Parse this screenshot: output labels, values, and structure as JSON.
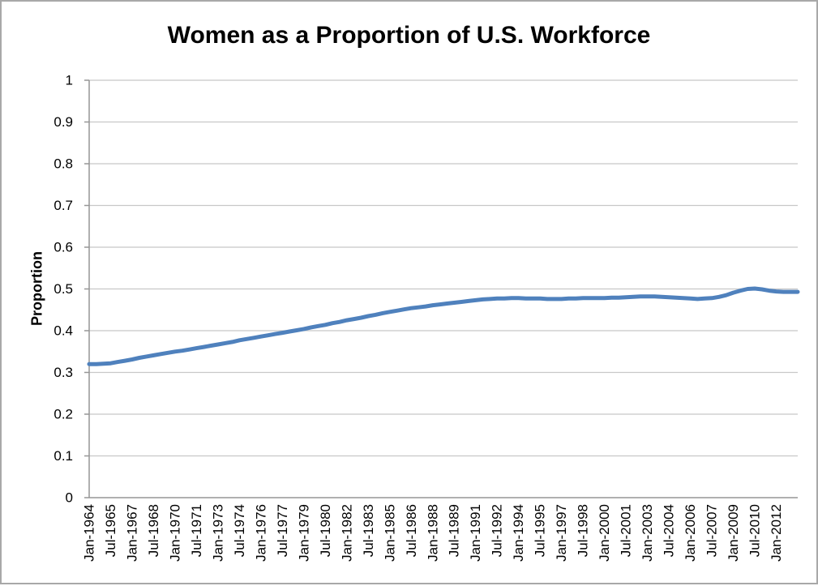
{
  "window": {
    "background": "#ffffff",
    "frame_border_color": "#a8a8a8"
  },
  "chart_data": {
    "type": "line",
    "title": "Women as a Proportion of U.S. Workforce",
    "xlabel": "",
    "ylabel": "Proportion",
    "ylim": [
      0,
      1
    ],
    "grid": "horizontal",
    "legend": "none",
    "y_tick_labels": [
      "1",
      "0.9",
      "0.8",
      "0.7",
      "0.6",
      "0.5",
      "0.4",
      "0.3",
      "0.2",
      "0.1",
      "0"
    ],
    "x_tick_labels": [
      "Jan-1964",
      "Jul-1965",
      "Jan-1967",
      "Jul-1968",
      "Jan-1970",
      "Jul-1971",
      "Jan-1973",
      "Jul-1974",
      "Jan-1976",
      "Jul-1977",
      "Jan-1979",
      "Jul-1980",
      "Jan-1982",
      "Jul-1983",
      "Jan-1985",
      "Jul-1986",
      "Jan-1988",
      "Jul-1989",
      "Jan-1991",
      "Jul-1992",
      "Jan-1994",
      "Jul-1995",
      "Jan-1997",
      "Jul-1998",
      "Jan-2000",
      "Jul-2001",
      "Jan-2003",
      "Jul-2004",
      "Jan-2006",
      "Jul-2007",
      "Jan-2009",
      "Jul-2010",
      "Jan-2012"
    ],
    "x_tick_interval_months": 18,
    "colors": {
      "line": "#4f81bd",
      "gridline": "#c8c8c8",
      "axis": "#969696",
      "text": "#000000"
    },
    "series": [
      {
        "name": "Proportion",
        "start_date": "Jan-1964",
        "end_date": "Jul-2013",
        "interval_months": 6,
        "values": [
          0.32,
          0.32,
          0.321,
          0.322,
          0.325,
          0.328,
          0.331,
          0.335,
          0.338,
          0.341,
          0.344,
          0.347,
          0.35,
          0.352,
          0.355,
          0.358,
          0.361,
          0.364,
          0.367,
          0.37,
          0.373,
          0.377,
          0.38,
          0.383,
          0.386,
          0.389,
          0.392,
          0.395,
          0.398,
          0.401,
          0.404,
          0.408,
          0.411,
          0.414,
          0.418,
          0.421,
          0.425,
          0.428,
          0.431,
          0.435,
          0.438,
          0.442,
          0.445,
          0.448,
          0.451,
          0.454,
          0.456,
          0.458,
          0.461,
          0.463,
          0.465,
          0.467,
          0.469,
          0.471,
          0.473,
          0.475,
          0.476,
          0.477,
          0.477,
          0.478,
          0.478,
          0.477,
          0.477,
          0.477,
          0.476,
          0.476,
          0.476,
          0.477,
          0.477,
          0.478,
          0.478,
          0.478,
          0.478,
          0.479,
          0.479,
          0.48,
          0.481,
          0.482,
          0.482,
          0.482,
          0.481,
          0.48,
          0.479,
          0.478,
          0.477,
          0.476,
          0.477,
          0.478,
          0.481,
          0.485,
          0.491,
          0.496,
          0.5,
          0.501,
          0.499,
          0.496,
          0.494,
          0.493,
          0.493,
          0.493
        ]
      }
    ]
  }
}
